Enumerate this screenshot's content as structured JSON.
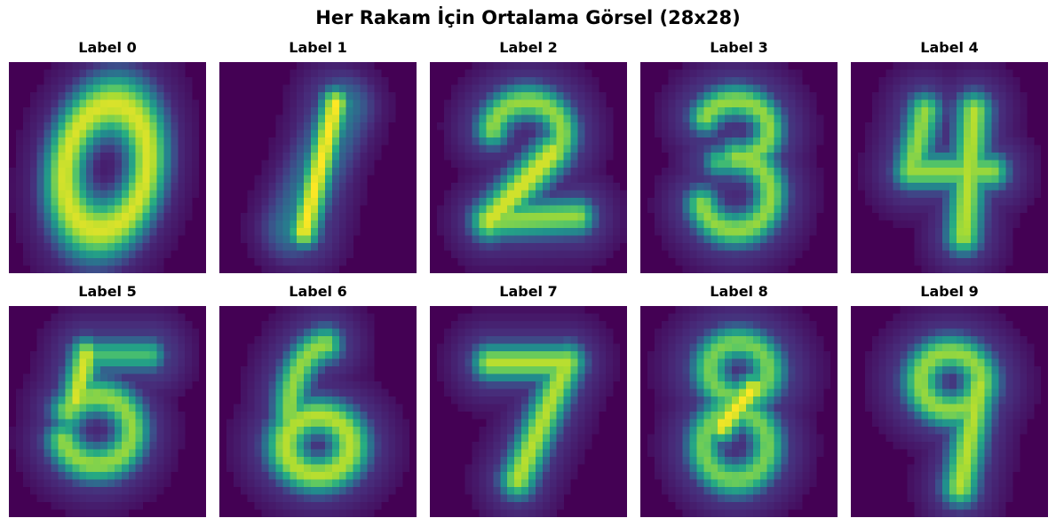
{
  "title": "Her Rakam İçin Ortalama Görsel (28x28)",
  "colors": {
    "colormap": "viridis",
    "background": "#440154"
  },
  "chart_data": [
    {
      "type": "heatmap",
      "title": "Label 0",
      "digit": 0,
      "grid": [
        28,
        28
      ]
    },
    {
      "type": "heatmap",
      "title": "Label 1",
      "digit": 1,
      "grid": [
        28,
        28
      ]
    },
    {
      "type": "heatmap",
      "title": "Label 2",
      "digit": 2,
      "grid": [
        28,
        28
      ]
    },
    {
      "type": "heatmap",
      "title": "Label 3",
      "digit": 3,
      "grid": [
        28,
        28
      ]
    },
    {
      "type": "heatmap",
      "title": "Label 4",
      "digit": 4,
      "grid": [
        28,
        28
      ]
    },
    {
      "type": "heatmap",
      "title": "Label 5",
      "digit": 5,
      "grid": [
        28,
        28
      ]
    },
    {
      "type": "heatmap",
      "title": "Label 6",
      "digit": 6,
      "grid": [
        28,
        28
      ]
    },
    {
      "type": "heatmap",
      "title": "Label 7",
      "digit": 7,
      "grid": [
        28,
        28
      ]
    },
    {
      "type": "heatmap",
      "title": "Label 8",
      "digit": 8,
      "grid": [
        28,
        28
      ]
    },
    {
      "type": "heatmap",
      "title": "Label 9",
      "digit": 9,
      "grid": [
        28,
        28
      ]
    }
  ]
}
